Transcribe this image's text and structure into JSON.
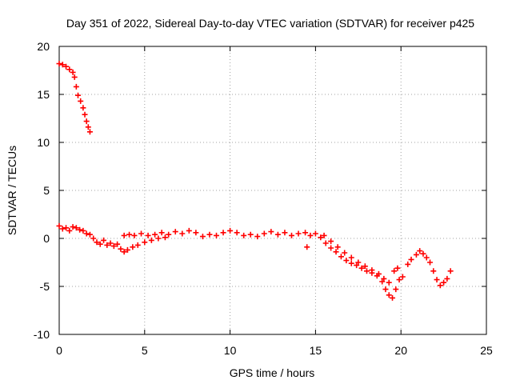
{
  "chart_data": {
    "type": "scatter",
    "title": "Day 351 of 2022, Sidereal Day-to-day VTEC variation (SDTVAR) for receiver p425",
    "xlabel": "GPS time / hours",
    "ylabel": "SDTVAR / TECUs",
    "xlim": [
      0,
      25
    ],
    "ylim": [
      -10,
      20
    ],
    "xticks": [
      0,
      5,
      10,
      15,
      20,
      25
    ],
    "yticks": [
      -10,
      -5,
      0,
      5,
      10,
      15,
      20
    ],
    "xtick_labels": [
      "0",
      "5",
      "10",
      "15",
      "20",
      "25"
    ],
    "ytick_labels": [
      "-10",
      "-5",
      "0",
      "5",
      "10",
      "15",
      "20"
    ],
    "grid": true,
    "marker": "+",
    "series": [
      {
        "name": "SDTVAR",
        "color": "#ff0000",
        "points": [
          [
            0.0,
            18.2
          ],
          [
            0.2,
            18.1
          ],
          [
            0.4,
            17.9
          ],
          [
            0.6,
            17.6
          ],
          [
            0.8,
            17.3
          ],
          [
            0.9,
            16.8
          ],
          [
            1.0,
            15.8
          ],
          [
            1.1,
            14.9
          ],
          [
            1.25,
            14.3
          ],
          [
            1.4,
            13.6
          ],
          [
            1.5,
            12.9
          ],
          [
            1.6,
            12.2
          ],
          [
            1.7,
            11.6
          ],
          [
            1.8,
            11.1
          ],
          [
            0.0,
            1.3
          ],
          [
            0.2,
            1.0
          ],
          [
            0.4,
            1.1
          ],
          [
            0.6,
            0.8
          ],
          [
            0.8,
            1.2
          ],
          [
            1.0,
            1.1
          ],
          [
            1.2,
            0.9
          ],
          [
            1.4,
            0.8
          ],
          [
            1.6,
            0.5
          ],
          [
            1.8,
            0.4
          ],
          [
            2.0,
            0.0
          ],
          [
            2.2,
            -0.4
          ],
          [
            2.4,
            -0.6
          ],
          [
            2.6,
            -0.2
          ],
          [
            2.8,
            -0.7
          ],
          [
            3.0,
            -0.5
          ],
          [
            3.2,
            -0.8
          ],
          [
            3.4,
            -0.6
          ],
          [
            3.6,
            -1.1
          ],
          [
            3.8,
            -1.4
          ],
          [
            4.0,
            -1.2
          ],
          [
            4.3,
            -0.9
          ],
          [
            4.6,
            -0.7
          ],
          [
            5.0,
            -0.4
          ],
          [
            5.4,
            -0.2
          ],
          [
            5.8,
            0.0
          ],
          [
            6.2,
            0.1
          ],
          [
            3.8,
            0.3
          ],
          [
            4.1,
            0.4
          ],
          [
            4.4,
            0.3
          ],
          [
            4.8,
            0.5
          ],
          [
            5.2,
            0.3
          ],
          [
            5.6,
            0.4
          ],
          [
            6.0,
            0.6
          ],
          [
            6.4,
            0.4
          ],
          [
            6.8,
            0.7
          ],
          [
            7.2,
            0.5
          ],
          [
            7.6,
            0.8
          ],
          [
            8.0,
            0.6
          ],
          [
            8.4,
            0.2
          ],
          [
            8.8,
            0.4
          ],
          [
            9.2,
            0.3
          ],
          [
            9.6,
            0.6
          ],
          [
            10.0,
            0.8
          ],
          [
            10.4,
            0.6
          ],
          [
            10.8,
            0.3
          ],
          [
            11.2,
            0.4
          ],
          [
            11.6,
            0.2
          ],
          [
            12.0,
            0.5
          ],
          [
            12.4,
            0.7
          ],
          [
            12.8,
            0.4
          ],
          [
            13.2,
            0.6
          ],
          [
            13.6,
            0.3
          ],
          [
            14.0,
            0.5
          ],
          [
            14.4,
            0.6
          ],
          [
            14.7,
            0.3
          ],
          [
            14.5,
            -0.9
          ],
          [
            15.0,
            0.5
          ],
          [
            15.3,
            0.1
          ],
          [
            15.6,
            -0.5
          ],
          [
            15.9,
            -1.0
          ],
          [
            16.2,
            -1.4
          ],
          [
            16.5,
            -1.9
          ],
          [
            16.8,
            -2.3
          ],
          [
            17.1,
            -2.6
          ],
          [
            17.4,
            -2.8
          ],
          [
            17.7,
            -3.1
          ],
          [
            18.0,
            -3.4
          ],
          [
            18.3,
            -3.6
          ],
          [
            18.6,
            -3.9
          ],
          [
            18.9,
            -4.5
          ],
          [
            19.1,
            -5.3
          ],
          [
            19.3,
            -5.9
          ],
          [
            19.5,
            -6.2
          ],
          [
            19.7,
            -5.3
          ],
          [
            19.9,
            -4.3
          ],
          [
            20.1,
            -4.0
          ],
          [
            15.5,
            0.3
          ],
          [
            15.9,
            -0.3
          ],
          [
            16.3,
            -0.9
          ],
          [
            16.7,
            -1.5
          ],
          [
            17.1,
            -2.0
          ],
          [
            17.5,
            -2.5
          ],
          [
            17.9,
            -2.9
          ],
          [
            18.3,
            -3.3
          ],
          [
            18.7,
            -3.7
          ],
          [
            19.0,
            -4.2
          ],
          [
            19.3,
            -4.6
          ],
          [
            19.6,
            -3.4
          ],
          [
            19.8,
            -3.1
          ],
          [
            20.4,
            -2.7
          ],
          [
            20.6,
            -2.2
          ],
          [
            20.9,
            -1.7
          ],
          [
            21.1,
            -1.3
          ],
          [
            21.3,
            -1.6
          ],
          [
            21.5,
            -2.0
          ],
          [
            21.7,
            -2.5
          ],
          [
            21.9,
            -3.4
          ],
          [
            22.1,
            -4.3
          ],
          [
            22.3,
            -4.9
          ],
          [
            22.5,
            -4.6
          ],
          [
            22.7,
            -4.2
          ],
          [
            22.9,
            -3.4
          ]
        ]
      }
    ]
  }
}
